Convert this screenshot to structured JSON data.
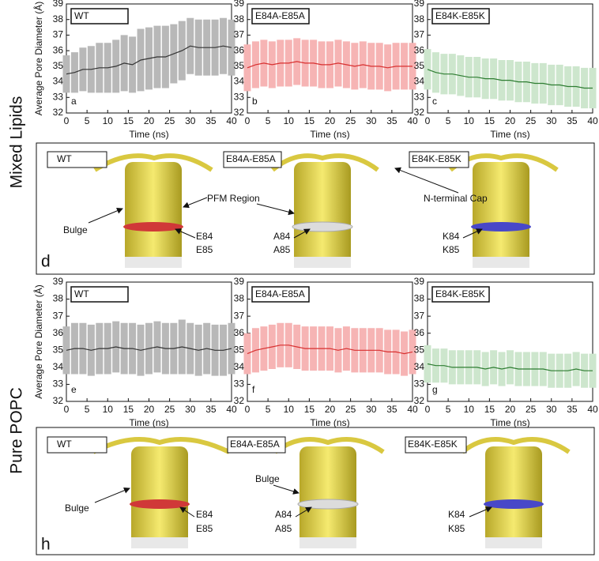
{
  "chart_data": [
    {
      "type": "line",
      "panel": "a",
      "y_label": "Average Pore Diameter (Å)",
      "x_label": "Time (ns)",
      "x": [
        0,
        2,
        4,
        6,
        8,
        10,
        12,
        14,
        16,
        18,
        20,
        22,
        24,
        26,
        28,
        30,
        32,
        34,
        36,
        38,
        40
      ],
      "series": [
        {
          "name": "WT",
          "color": "#333333",
          "band_color": "#b8b8b8",
          "values": [
            34.5,
            34.6,
            34.8,
            34.8,
            34.9,
            34.9,
            35.0,
            35.2,
            35.1,
            35.4,
            35.5,
            35.6,
            35.6,
            35.8,
            36.0,
            36.3,
            36.2,
            36.2,
            36.2,
            36.3,
            36.2
          ],
          "errors": [
            1.2,
            1.3,
            1.4,
            1.5,
            1.6,
            1.6,
            1.7,
            1.8,
            1.8,
            2.0,
            2.0,
            2.0,
            2.0,
            1.9,
            1.9,
            1.8,
            1.8,
            1.8,
            1.8,
            1.8,
            1.8
          ]
        }
      ],
      "xlim": [
        0,
        40
      ],
      "xticks": [
        0,
        5,
        10,
        15,
        20,
        25,
        30,
        35,
        40
      ],
      "ylim": [
        32,
        39
      ],
      "yticks": [
        32,
        33,
        34,
        35,
        36,
        37,
        38,
        39
      ]
    },
    {
      "type": "line",
      "panel": "b",
      "x_label": "Time (ns)",
      "x": [
        0,
        2,
        4,
        6,
        8,
        10,
        12,
        14,
        16,
        18,
        20,
        22,
        24,
        26,
        28,
        30,
        32,
        34,
        36,
        38,
        40
      ],
      "series": [
        {
          "name": "E84A-E85A",
          "color": "#d83030",
          "band_color": "#f6b4b4",
          "values": [
            34.9,
            35.1,
            35.2,
            35.1,
            35.2,
            35.2,
            35.3,
            35.2,
            35.2,
            35.1,
            35.1,
            35.2,
            35.1,
            35.0,
            35.1,
            35.0,
            35.0,
            34.9,
            35.0,
            35.0,
            35.0
          ],
          "errors": [
            1.5,
            1.5,
            1.5,
            1.5,
            1.5,
            1.5,
            1.5,
            1.5,
            1.5,
            1.5,
            1.5,
            1.5,
            1.5,
            1.5,
            1.5,
            1.5,
            1.5,
            1.5,
            1.5,
            1.5,
            1.5
          ]
        }
      ],
      "xlim": [
        0,
        40
      ],
      "xticks": [
        0,
        5,
        10,
        15,
        20,
        25,
        30,
        35,
        40
      ],
      "ylim": [
        32,
        39
      ],
      "yticks": [
        32,
        33,
        34,
        35,
        36,
        37,
        38,
        39
      ]
    },
    {
      "type": "line",
      "panel": "c",
      "x_label": "Time (ns)",
      "x": [
        0,
        2,
        4,
        6,
        8,
        10,
        12,
        14,
        16,
        18,
        20,
        22,
        24,
        26,
        28,
        30,
        32,
        34,
        36,
        38,
        40
      ],
      "series": [
        {
          "name": "E84K-E85K",
          "color": "#2e7d32",
          "band_color": "#cde6cd",
          "values": [
            34.8,
            34.6,
            34.5,
            34.5,
            34.4,
            34.3,
            34.3,
            34.2,
            34.2,
            34.1,
            34.1,
            34.0,
            34.0,
            33.9,
            33.9,
            33.8,
            33.8,
            33.7,
            33.7,
            33.6,
            33.6
          ],
          "errors": [
            1.3,
            1.3,
            1.3,
            1.3,
            1.3,
            1.3,
            1.3,
            1.3,
            1.3,
            1.3,
            1.3,
            1.3,
            1.3,
            1.3,
            1.3,
            1.3,
            1.3,
            1.3,
            1.3,
            1.3,
            1.3
          ]
        }
      ],
      "xlim": [
        0,
        40
      ],
      "xticks": [
        0,
        5,
        10,
        15,
        20,
        25,
        30,
        35,
        40
      ],
      "ylim": [
        32,
        39
      ],
      "yticks": [
        32,
        33,
        34,
        35,
        36,
        37,
        38,
        39
      ]
    },
    {
      "type": "line",
      "panel": "e",
      "y_label": "Average Pore Diameter (Å)",
      "x_label": "Time (ns)",
      "x": [
        0,
        2,
        4,
        6,
        8,
        10,
        12,
        14,
        16,
        18,
        20,
        22,
        24,
        26,
        28,
        30,
        32,
        34,
        36,
        38,
        40
      ],
      "series": [
        {
          "name": "WT",
          "color": "#333333",
          "band_color": "#b8b8b8",
          "values": [
            35.0,
            35.1,
            35.1,
            35.0,
            35.1,
            35.1,
            35.2,
            35.1,
            35.1,
            35.0,
            35.1,
            35.2,
            35.1,
            35.1,
            35.2,
            35.1,
            35.0,
            35.1,
            35.0,
            35.0,
            35.1
          ],
          "errors": [
            1.4,
            1.5,
            1.5,
            1.5,
            1.5,
            1.5,
            1.5,
            1.5,
            1.5,
            1.5,
            1.5,
            1.5,
            1.5,
            1.5,
            1.6,
            1.5,
            1.5,
            1.5,
            1.5,
            1.5,
            1.5
          ]
        }
      ],
      "xlim": [
        0,
        40
      ],
      "xticks": [
        0,
        5,
        10,
        15,
        20,
        25,
        30,
        35,
        40
      ],
      "ylim": [
        32,
        39
      ],
      "yticks": [
        32,
        33,
        34,
        35,
        36,
        37,
        38,
        39
      ]
    },
    {
      "type": "line",
      "panel": "f",
      "x_label": "Time (ns)",
      "x": [
        0,
        2,
        4,
        6,
        8,
        10,
        12,
        14,
        16,
        18,
        20,
        22,
        24,
        26,
        28,
        30,
        32,
        34,
        36,
        38,
        40
      ],
      "series": [
        {
          "name": "E84A-E85A",
          "color": "#d83030",
          "band_color": "#f6b4b4",
          "values": [
            34.8,
            35.0,
            35.1,
            35.2,
            35.3,
            35.3,
            35.2,
            35.1,
            35.1,
            35.1,
            35.1,
            35.0,
            35.1,
            35.0,
            35.0,
            35.0,
            35.0,
            34.9,
            34.9,
            34.8,
            34.9
          ],
          "errors": [
            1.2,
            1.3,
            1.3,
            1.3,
            1.3,
            1.3,
            1.3,
            1.3,
            1.3,
            1.3,
            1.3,
            1.3,
            1.3,
            1.3,
            1.3,
            1.3,
            1.3,
            1.3,
            1.3,
            1.3,
            1.3
          ]
        }
      ],
      "xlim": [
        0,
        40
      ],
      "xticks": [
        0,
        5,
        10,
        15,
        20,
        25,
        30,
        35,
        40
      ],
      "ylim": [
        32,
        39
      ],
      "yticks": [
        32,
        33,
        34,
        35,
        36,
        37,
        38,
        39
      ]
    },
    {
      "type": "line",
      "panel": "g",
      "x_label": "Time (ns)",
      "x": [
        0,
        2,
        4,
        6,
        8,
        10,
        12,
        14,
        16,
        18,
        20,
        22,
        24,
        26,
        28,
        30,
        32,
        34,
        36,
        38,
        40
      ],
      "series": [
        {
          "name": "E84K-E85K",
          "color": "#2e7d32",
          "band_color": "#cde6cd",
          "values": [
            34.2,
            34.1,
            34.1,
            34.0,
            34.0,
            34.0,
            34.0,
            33.9,
            34.0,
            33.9,
            34.0,
            33.9,
            33.9,
            33.9,
            33.9,
            33.8,
            33.8,
            33.8,
            33.9,
            33.8,
            33.8
          ],
          "errors": [
            1.1,
            1.0,
            1.0,
            1.0,
            1.0,
            1.0,
            1.0,
            1.0,
            1.0,
            1.0,
            1.0,
            1.0,
            1.0,
            1.0,
            1.0,
            1.0,
            1.0,
            1.0,
            1.0,
            1.0,
            1.0
          ]
        }
      ],
      "xlim": [
        0,
        40
      ],
      "xticks": [
        0,
        5,
        10,
        15,
        20,
        25,
        30,
        35,
        40
      ],
      "ylim": [
        32,
        39
      ],
      "yticks": [
        32,
        33,
        34,
        35,
        36,
        37,
        38,
        39
      ]
    }
  ],
  "row_labels": [
    "Mixed Lipids",
    "Pure POPC"
  ],
  "structure_panels": [
    {
      "panel": "d",
      "labels": [
        "WT",
        "E84A-E85A",
        "E84K-E85K"
      ],
      "annotations": [
        "Bulge",
        "PFM Region",
        "N-terminal Cap",
        "E84",
        "E85",
        "A84",
        "A85",
        "K84",
        "K85"
      ]
    },
    {
      "panel": "h",
      "labels": [
        "WT",
        "E84A-E85A",
        "E84K-E85K"
      ],
      "annotations": [
        "Bulge",
        "Bulge",
        "E84",
        "E85",
        "A84",
        "A85",
        "K84",
        "K85"
      ]
    }
  ]
}
